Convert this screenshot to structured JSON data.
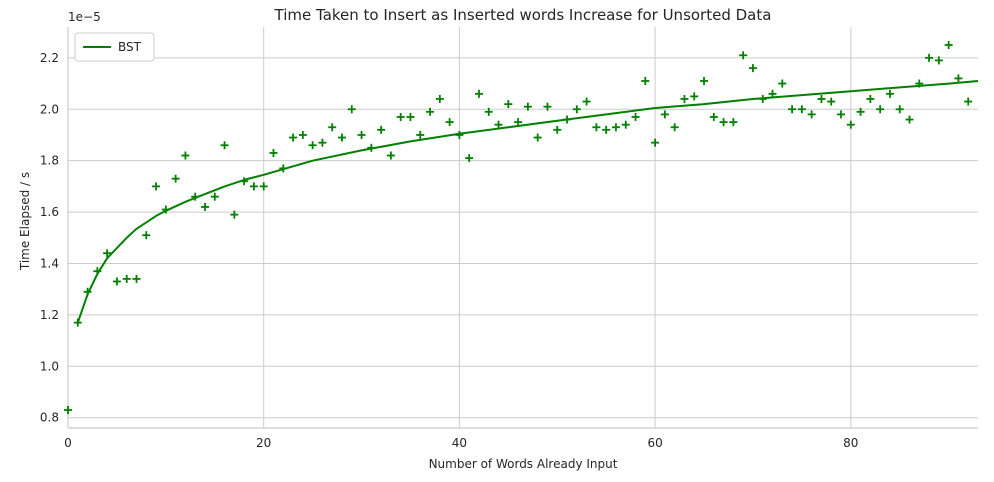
{
  "chart_data": {
    "type": "scatter",
    "title": "Time Taken to Insert as Inserted words Increase for Unsorted Data",
    "xlabel": "Number of Words Already Input",
    "ylabel": "Time Elapsed / s",
    "y_offset_text": "1e−5",
    "xlim": [
      0,
      93
    ],
    "ylim": [
      0.76,
      2.32
    ],
    "x_ticks": [
      0,
      20,
      40,
      60,
      80
    ],
    "x_tick_labels": [
      "0",
      "20",
      "40",
      "60",
      "80"
    ],
    "y_ticks": [
      0.8,
      1.0,
      1.2,
      1.4,
      1.6,
      1.8,
      2.0,
      2.2
    ],
    "y_tick_labels": [
      "0.8",
      "1.0",
      "1.2",
      "1.4",
      "1.6",
      "1.8",
      "2.0",
      "2.2"
    ],
    "grid": true,
    "legend_position": "top-left",
    "color": "#008000",
    "series": [
      {
        "name": "BST",
        "kind": "line",
        "x": [
          1,
          2,
          3,
          4,
          5,
          6,
          7,
          8,
          9,
          10,
          12,
          14,
          16,
          18,
          20,
          25,
          30,
          35,
          40,
          45,
          50,
          55,
          60,
          65,
          70,
          75,
          80,
          85,
          90,
          93
        ],
        "y": [
          1.17,
          1.28,
          1.36,
          1.42,
          1.46,
          1.5,
          1.535,
          1.56,
          1.585,
          1.605,
          1.64,
          1.67,
          1.7,
          1.725,
          1.745,
          1.8,
          1.84,
          1.875,
          1.905,
          1.93,
          1.955,
          1.98,
          2.005,
          2.02,
          2.04,
          2.055,
          2.07,
          2.085,
          2.1,
          2.11
        ]
      },
      {
        "name": "",
        "kind": "scatter",
        "marker": "+",
        "x": [
          0,
          1,
          2,
          3,
          4,
          5,
          6,
          7,
          8,
          9,
          10,
          11,
          12,
          13,
          14,
          15,
          16,
          17,
          18,
          19,
          20,
          21,
          22,
          23,
          24,
          25,
          26,
          27,
          28,
          29,
          30,
          31,
          32,
          33,
          34,
          35,
          36,
          37,
          38,
          39,
          40,
          41,
          42,
          43,
          44,
          45,
          46,
          47,
          48,
          49,
          50,
          51,
          52,
          53,
          54,
          55,
          56,
          57,
          58,
          59,
          60,
          61,
          62,
          63,
          64,
          65,
          66,
          67,
          68,
          69,
          70,
          71,
          72,
          73,
          74,
          75,
          76,
          77,
          78,
          79,
          80,
          81,
          82,
          83,
          84,
          85,
          86,
          87,
          88,
          89,
          90,
          91,
          92
        ],
        "y": [
          0.83,
          1.17,
          1.29,
          1.37,
          1.44,
          1.33,
          1.34,
          1.34,
          1.51,
          1.7,
          1.61,
          1.73,
          1.82,
          1.66,
          1.62,
          1.66,
          1.86,
          1.59,
          1.72,
          1.7,
          1.7,
          1.83,
          1.77,
          1.89,
          1.9,
          1.86,
          1.87,
          1.93,
          1.89,
          2.0,
          1.9,
          1.85,
          1.92,
          1.82,
          1.97,
          1.97,
          1.9,
          1.99,
          2.04,
          1.95,
          1.9,
          1.81,
          2.06,
          1.99,
          1.94,
          2.02,
          1.95,
          2.01,
          1.89,
          2.01,
          1.92,
          1.96,
          2.0,
          2.03,
          1.93,
          1.92,
          1.93,
          1.94,
          1.97,
          2.11,
          1.87,
          1.98,
          1.93,
          2.04,
          2.05,
          2.11,
          1.97,
          1.95,
          1.95,
          2.21,
          2.16,
          2.04,
          2.06,
          2.1,
          2.0,
          2.0,
          1.98,
          2.04,
          2.03,
          1.98,
          1.94,
          1.99,
          2.04,
          2.0,
          2.06,
          2.0,
          1.96,
          2.1,
          2.2,
          2.19,
          2.25,
          2.12,
          2.03
        ]
      }
    ]
  }
}
